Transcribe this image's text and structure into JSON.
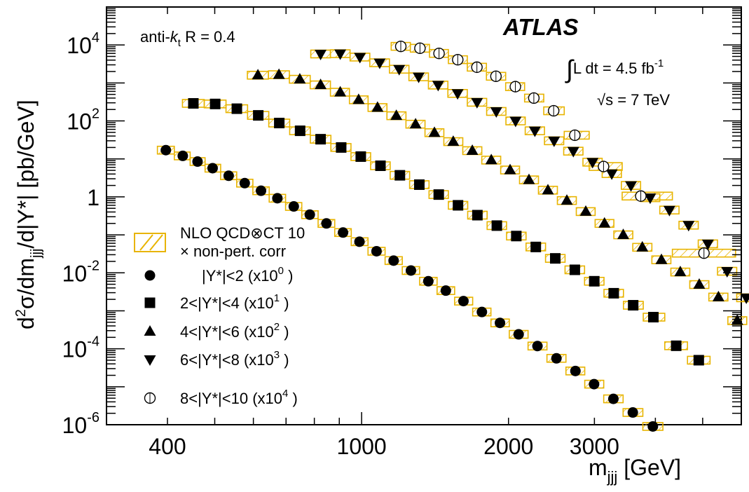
{
  "chart_data": {
    "type": "scatter",
    "title": "",
    "experiment_label": "ATLAS",
    "algorithm_label": {
      "prefix": "anti-",
      "k": "k",
      "sub": "t",
      "suffix": " R = 0.4"
    },
    "lumi_label": {
      "integral": "∫",
      "main": "L dt = 4.5 fb",
      "sup": "-1"
    },
    "energy_label": {
      "sqrt": "√",
      "main": "s = 7 TeV"
    },
    "xlabel": {
      "main": "m",
      "sub": "jjj",
      "unit": " [GeV]"
    },
    "ylabel": {
      "d1": "d",
      "sup2": "2",
      "mid": "σ/dm",
      "sub": "jjj",
      "rest": "/d|Y*| [pb/GeV]"
    },
    "x_scale": "log",
    "y_scale": "log",
    "xlim": [
      300,
      6000
    ],
    "ylim": [
      1e-06,
      100000
    ],
    "x_ticks": [
      {
        "value": 400,
        "label": "400"
      },
      {
        "value": 1000,
        "label": "1000"
      },
      {
        "value": 2000,
        "label": "2000"
      },
      {
        "value": 3000,
        "label": "3000"
      }
    ],
    "y_ticks": [
      {
        "value": 1e-06,
        "base": "10",
        "exp": "-6"
      },
      {
        "value": 0.0001,
        "base": "10",
        "exp": "-4"
      },
      {
        "value": 0.01,
        "base": "10",
        "exp": "-2"
      },
      {
        "value": 1,
        "base": "1",
        "exp": ""
      },
      {
        "value": 100,
        "base": "10",
        "exp": "2"
      },
      {
        "value": 10000,
        "base": "10",
        "exp": "4"
      }
    ],
    "legend": {
      "placement": "bottom-left",
      "band_label_1": "NLO QCD⊗CT 10",
      "band_label_2": "× non-pert. corr"
    },
    "series": [
      {
        "name": "|Y*|<2",
        "scale_text": "(x10",
        "scale_exp": "0",
        "marker": "circle",
        "points": [
          [
            397,
            17
          ],
          [
            430,
            12
          ],
          [
            461,
            8.5
          ],
          [
            495,
            5.7
          ],
          [
            534,
            3.6
          ],
          [
            576,
            2.3
          ],
          [
            622,
            1.45
          ],
          [
            672,
            0.92
          ],
          [
            726,
            0.56
          ],
          [
            783,
            0.34
          ],
          [
            847,
            0.2
          ],
          [
            916,
            0.115
          ],
          [
            990,
            0.066
          ],
          [
            1073,
            0.037
          ],
          [
            1163,
            0.021
          ],
          [
            1262,
            0.0115
          ],
          [
            1370,
            0.006
          ],
          [
            1488,
            0.0034
          ],
          [
            1617,
            0.0018
          ],
          [
            1764,
            0.00093
          ],
          [
            1921,
            0.00048
          ],
          [
            2098,
            0.00024
          ],
          [
            2293,
            0.000118
          ],
          [
            2508,
            5.6e-05
          ],
          [
            2743,
            2.6e-05
          ],
          [
            2995,
            1.17e-05
          ],
          [
            3281,
            4.8e-06
          ],
          [
            3596,
            2.1e-06
          ],
          [
            3953,
            9e-07
          ]
        ]
      },
      {
        "name": "2<|Y*|<4",
        "scale_text": "(x10",
        "scale_exp": "1",
        "marker": "square",
        "points": [
          [
            452,
            290
          ],
          [
            501,
            280
          ],
          [
            555,
            210
          ],
          [
            614,
            140
          ],
          [
            678,
            88
          ],
          [
            748,
            55
          ],
          [
            824,
            33
          ],
          [
            908,
            20
          ],
          [
            996,
            11.5
          ],
          [
            1093,
            6.6
          ],
          [
            1198,
            3.7
          ],
          [
            1313,
            2.1
          ],
          [
            1439,
            1.15
          ],
          [
            1576,
            0.6
          ],
          [
            1727,
            0.33
          ],
          [
            1893,
            0.175
          ],
          [
            2075,
            0.093
          ],
          [
            2275,
            0.048
          ],
          [
            2494,
            0.024
          ],
          [
            2735,
            0.012
          ],
          [
            2998,
            0.006
          ],
          [
            3286,
            0.0029
          ],
          [
            3602,
            0.0014
          ],
          [
            3962,
            0.00068
          ],
          [
            4413,
            0.00012
          ],
          [
            4909,
            5e-05
          ]
        ]
      },
      {
        "name": "4<|Y*|<6",
        "scale_text": "(x10",
        "scale_exp": "2",
        "marker": "triangle-up",
        "points": [
          [
            613,
            1600
          ],
          [
            677,
            1650
          ],
          [
            747,
            1250
          ],
          [
            824,
            890
          ],
          [
            904,
            570
          ],
          [
            986,
            360
          ],
          [
            1078,
            225
          ],
          [
            1178,
            137
          ],
          [
            1290,
            82
          ],
          [
            1410,
            49
          ],
          [
            1541,
            28.5
          ],
          [
            1686,
            16.5
          ],
          [
            1844,
            9.3
          ],
          [
            2015,
            5.1
          ],
          [
            2203,
            2.8
          ],
          [
            2409,
            1.5
          ],
          [
            2634,
            0.8
          ],
          [
            2880,
            0.41
          ],
          [
            3146,
            0.2
          ],
          [
            3437,
            0.1
          ],
          [
            3761,
            0.047
          ],
          [
            4116,
            0.022
          ],
          [
            4499,
            0.0105
          ],
          [
            4920,
            0.0049
          ],
          [
            5387,
            0.0023
          ],
          [
            5888,
            0.00055
          ]
        ]
      },
      {
        "name": "6<|Y*|<8",
        "scale_text": "(x10",
        "scale_exp": "3",
        "marker": "triangle-down",
        "points": [
          [
            824,
            5800
          ],
          [
            904,
            5900
          ],
          [
            992,
            4800
          ],
          [
            1089,
            3400
          ],
          [
            1194,
            2300
          ],
          [
            1309,
            1450
          ],
          [
            1435,
            880
          ],
          [
            1573,
            530
          ],
          [
            1724,
            310
          ],
          [
            1888,
            178
          ],
          [
            2068,
            100
          ],
          [
            2265,
            55
          ],
          [
            2480,
            30
          ],
          [
            2716,
            16
          ],
          [
            2974,
            8.2
          ],
          [
            3256,
            4.1
          ],
          [
            3565,
            2
          ],
          [
            3903,
            0.95
          ],
          [
            4274,
            0.45
          ],
          [
            4679,
            0.18
          ],
          [
            5125,
            0.058
          ],
          [
            5612,
            0.011
          ],
          [
            6144,
            0.0022
          ]
        ]
      },
      {
        "name": "8<|Y*|<10",
        "scale_text": "(x10",
        "scale_exp": "4",
        "marker": "open-circle",
        "points": [
          [
            1203,
            9200
          ],
          [
            1317,
            8200
          ],
          [
            1441,
            6000
          ],
          [
            1574,
            4100
          ],
          [
            1723,
            2600
          ],
          [
            1885,
            1500
          ],
          [
            2066,
            800
          ],
          [
            2254,
            400
          ],
          [
            2475,
            185
          ],
          [
            2735,
            42
          ],
          [
            3132,
            6.3
          ],
          [
            3734,
            1.05
          ],
          [
            5031,
            0.033
          ]
        ]
      }
    ]
  }
}
